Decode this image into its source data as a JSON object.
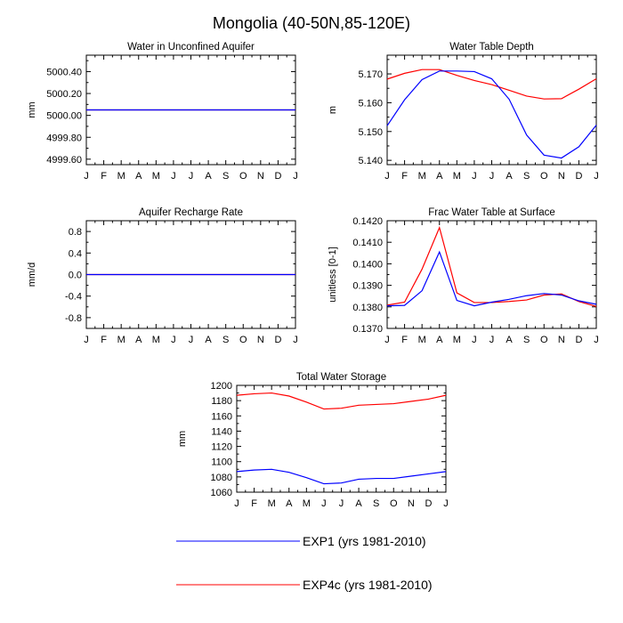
{
  "figure": {
    "title": "Mongolia (40-50N,85-120E)",
    "colors": {
      "exp1": "#0000ff",
      "exp4c": "#ff0000",
      "axis": "#000000"
    }
  },
  "legend": [
    {
      "label": "EXP1 (yrs 1981-2010)",
      "color": "#0000ff"
    },
    {
      "label": "EXP4c (yrs 1981-2010)",
      "color": "#ff0000"
    }
  ],
  "chart_data": [
    {
      "type": "line",
      "title": "Water in Unconfined Aquifer",
      "ylabel": "mm",
      "categories": [
        "J",
        "F",
        "M",
        "A",
        "M",
        "J",
        "J",
        "A",
        "S",
        "O",
        "N",
        "D",
        "J"
      ],
      "ylim": [
        4999.55,
        5000.55
      ],
      "yticks": [
        4999.6,
        4999.8,
        5000.0,
        5000.2,
        5000.4
      ],
      "ytick_labels": [
        "4999.60",
        "4999.80",
        "5000.00",
        "5000.20",
        "5000.40"
      ],
      "series": [
        {
          "name": "EXP1",
          "values": [
            5000.05,
            5000.05,
            5000.05,
            5000.05,
            5000.05,
            5000.05,
            5000.05,
            5000.05,
            5000.05,
            5000.05,
            5000.05,
            5000.05,
            5000.05
          ]
        },
        {
          "name": "EXP4c",
          "values": [
            5000.05,
            5000.05,
            5000.05,
            5000.05,
            5000.05,
            5000.05,
            5000.05,
            5000.05,
            5000.05,
            5000.05,
            5000.05,
            5000.05,
            5000.05
          ]
        }
      ]
    },
    {
      "type": "line",
      "title": "Water Table Depth",
      "ylabel": "m",
      "categories": [
        "J",
        "F",
        "M",
        "A",
        "M",
        "J",
        "J",
        "A",
        "S",
        "O",
        "N",
        "D",
        "J"
      ],
      "ylim": [
        5.1385,
        5.1765
      ],
      "yticks": [
        5.14,
        5.15,
        5.16,
        5.17
      ],
      "ytick_labels": [
        "5.140",
        "5.150",
        "5.160",
        "5.170"
      ],
      "series": [
        {
          "name": "EXP1",
          "values": [
            5.152,
            5.161,
            5.168,
            5.171,
            5.171,
            5.1708,
            5.1683,
            5.1612,
            5.1488,
            5.1418,
            5.1408,
            5.1447,
            5.1522
          ]
        },
        {
          "name": "EXP4c",
          "values": [
            5.1682,
            5.1702,
            5.1715,
            5.1715,
            5.1695,
            5.1677,
            5.1663,
            5.1643,
            5.1623,
            5.1613,
            5.1614,
            5.1647,
            5.1683
          ]
        }
      ]
    },
    {
      "type": "line",
      "title": "Aquifer Recharge Rate",
      "ylabel": "mm/d",
      "categories": [
        "J",
        "F",
        "M",
        "A",
        "M",
        "J",
        "J",
        "A",
        "S",
        "O",
        "N",
        "D",
        "J"
      ],
      "ylim": [
        -1,
        1
      ],
      "yticks": [
        -0.8,
        -0.4,
        0.0,
        0.4,
        0.8
      ],
      "ytick_labels": [
        "-0.8",
        "-0.4",
        "0.0",
        "0.4",
        "0.8"
      ],
      "series": [
        {
          "name": "EXP1",
          "values": [
            0,
            0,
            0,
            0,
            0,
            0,
            0,
            0,
            0,
            0,
            0,
            0,
            0
          ]
        },
        {
          "name": "EXP4c",
          "values": [
            0,
            0,
            0,
            0,
            0,
            0,
            0,
            0,
            0,
            0,
            0,
            0,
            0
          ]
        }
      ]
    },
    {
      "type": "line",
      "title": "Frac Water Table at Surface",
      "ylabel": "unitless [0-1]",
      "categories": [
        "J",
        "F",
        "M",
        "A",
        "M",
        "J",
        "J",
        "A",
        "S",
        "O",
        "N",
        "D",
        "J"
      ],
      "ylim": [
        0.137,
        0.142
      ],
      "yticks": [
        0.137,
        0.138,
        0.139,
        0.14,
        0.141,
        0.142
      ],
      "ytick_labels": [
        "0.1370",
        "0.1380",
        "0.1390",
        "0.1400",
        "0.1410",
        "0.1420"
      ],
      "series": [
        {
          "name": "EXP1",
          "values": [
            0.13805,
            0.13807,
            0.13875,
            0.14055,
            0.1383,
            0.13805,
            0.13822,
            0.13835,
            0.13852,
            0.13862,
            0.13855,
            0.13828,
            0.13812
          ]
        },
        {
          "name": "EXP4c",
          "values": [
            0.13808,
            0.13822,
            0.13975,
            0.14168,
            0.13865,
            0.1382,
            0.1382,
            0.13825,
            0.13832,
            0.13855,
            0.1386,
            0.13825,
            0.13802
          ]
        }
      ]
    },
    {
      "type": "line",
      "title": "Total Water Storage",
      "ylabel": "mm",
      "categories": [
        "J",
        "F",
        "M",
        "A",
        "M",
        "J",
        "J",
        "A",
        "S",
        "O",
        "N",
        "D",
        "J"
      ],
      "ylim": [
        1060,
        1200
      ],
      "yticks": [
        1060,
        1080,
        1100,
        1120,
        1140,
        1160,
        1180,
        1200
      ],
      "ytick_labels": [
        "1060",
        "1080",
        "1100",
        "1120",
        "1140",
        "1160",
        "1180",
        "1200"
      ],
      "series": [
        {
          "name": "EXP1",
          "values": [
            1087,
            1089,
            1090,
            1086,
            1079,
            1071,
            1072,
            1077,
            1078,
            1078,
            1081,
            1084,
            1087
          ]
        },
        {
          "name": "EXP4c",
          "values": [
            1187,
            1189,
            1190,
            1186,
            1178,
            1169,
            1170,
            1174,
            1175,
            1176,
            1179,
            1182,
            1187
          ]
        }
      ]
    }
  ]
}
